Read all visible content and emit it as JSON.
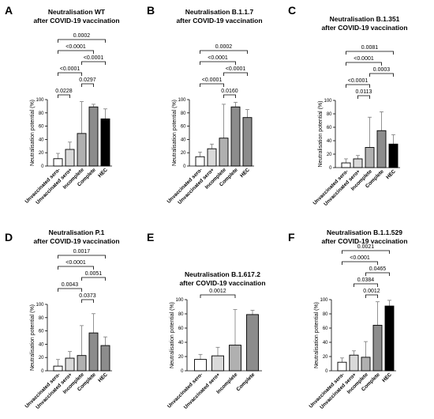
{
  "chart_data": [
    {
      "panel": "A",
      "type": "bar",
      "title": [
        "Neutralisation WT",
        "after COVID-19 vaccination"
      ],
      "ylabel": "Neutralisation potential (%)",
      "ylim": [
        0,
        100
      ],
      "yticks": [
        "0",
        "20",
        "40",
        "60",
        "80",
        "100"
      ],
      "categories": [
        "Unvaccinated sero-",
        "Unvaccinated sero+",
        "Incomplete",
        "Complete",
        "HEC"
      ],
      "values": [
        11,
        25,
        49,
        89,
        71
      ],
      "error_upper": [
        19,
        36,
        97,
        93,
        86
      ],
      "fills": [
        "#ffffff",
        "#d9d9d9",
        "#b0b0b0",
        "#8c8c8c",
        "#000000"
      ],
      "brackets": [
        {
          "from": 0,
          "to": 1,
          "label": "0.0228"
        },
        {
          "from": 2,
          "to": 3,
          "label": "0.0297"
        },
        {
          "from": 0,
          "to": 2,
          "label": "<0.0001"
        },
        {
          "from": 2,
          "to": 4,
          "label": "<0.0001"
        },
        {
          "from": 0,
          "to": 3,
          "label": "<0.0001"
        },
        {
          "from": 0,
          "to": 4,
          "label": "0.0002"
        }
      ]
    },
    {
      "panel": "B",
      "type": "bar",
      "title": [
        "Neutralisation B.1.1.7",
        "after COVID-19 vaccination"
      ],
      "ylabel": "Neutralisation potential (%)",
      "ylim": [
        0,
        100
      ],
      "yticks": [
        "0",
        "20",
        "40",
        "60",
        "80",
        "100"
      ],
      "categories": [
        "Unvaccinated sero-",
        "Unvaccinated sero+",
        "Incomplete",
        "Complete",
        "HEC"
      ],
      "values": [
        14,
        26,
        42,
        89,
        73
      ],
      "error_upper": [
        21,
        33,
        93,
        96,
        85
      ],
      "fills": [
        "#ffffff",
        "#d9d9d9",
        "#b0b0b0",
        "#8c8c8c",
        "#8c8c8c"
      ],
      "brackets": [
        {
          "from": 2,
          "to": 3,
          "label": "0.0160"
        },
        {
          "from": 0,
          "to": 2,
          "label": "<0.0001"
        },
        {
          "from": 2,
          "to": 4,
          "label": "<0.0001"
        },
        {
          "from": 0,
          "to": 3,
          "label": "<0.0001"
        },
        {
          "from": 0,
          "to": 4,
          "label": "0.0002"
        }
      ]
    },
    {
      "panel": "C",
      "type": "bar",
      "title": [
        "Neutralisation B.1.351",
        "after COVID-19 vaccination"
      ],
      "ylabel": "Neutralisation potential (%)",
      "ylim": [
        0,
        100
      ],
      "yticks": [
        "0",
        "20",
        "40",
        "60",
        "80",
        "100"
      ],
      "categories": [
        "Unvaccinated sero-",
        "Unvaccinated sero+",
        "Incomplete",
        "Complete",
        "HEC"
      ],
      "values": [
        7,
        13,
        30,
        55,
        35
      ],
      "error_upper": [
        13,
        18,
        75,
        83,
        49
      ],
      "fills": [
        "#ffffff",
        "#d9d9d9",
        "#b0b0b0",
        "#8c8c8c",
        "#000000"
      ],
      "brackets": [
        {
          "from": 1,
          "to": 2,
          "label": "0.0113"
        },
        {
          "from": 0,
          "to": 2,
          "label": "<0.0001"
        },
        {
          "from": 2,
          "to": 4,
          "label": "0.0003"
        },
        {
          "from": 0,
          "to": 3,
          "label": "<0.0001"
        },
        {
          "from": 0,
          "to": 4,
          "label": "0.0081"
        }
      ]
    },
    {
      "panel": "D",
      "type": "bar",
      "title": [
        "Neutralisation P.1",
        "after COVID-19 vaccination"
      ],
      "ylabel": "Neutralisation potential (%)",
      "ylim": [
        0,
        100
      ],
      "yticks": [
        "0",
        "20",
        "40",
        "60",
        "80",
        "100"
      ],
      "categories": [
        "Unvaccinated sero-",
        "Unvaccinated sero+",
        "Incomplete",
        "Complete",
        "HEC"
      ],
      "values": [
        7,
        19,
        23,
        57,
        38
      ],
      "error_upper": [
        17,
        29,
        68,
        86,
        51
      ],
      "fills": [
        "#ffffff",
        "#d9d9d9",
        "#b0b0b0",
        "#8c8c8c",
        "#8c8c8c"
      ],
      "brackets": [
        {
          "from": 2,
          "to": 3,
          "label": "0.0373"
        },
        {
          "from": 0,
          "to": 2,
          "label": "0.0043"
        },
        {
          "from": 2,
          "to": 4,
          "label": "0.0051"
        },
        {
          "from": 0,
          "to": 3,
          "label": "<0.0001"
        },
        {
          "from": 0,
          "to": 4,
          "label": "0.0017"
        }
      ]
    },
    {
      "panel": "E",
      "type": "bar",
      "title": [
        "Neutralisation B.1.617.2",
        "after COVID-19 vaccination"
      ],
      "ylabel": "Neutralisation potential (%)",
      "ylim": [
        0,
        100
      ],
      "yticks": [
        "0",
        "20",
        "40",
        "60",
        "80",
        "100"
      ],
      "categories": [
        "Unvaccinated sero-",
        "Unvaccinated sero+",
        "Incomplete",
        "Complete"
      ],
      "values": [
        16,
        21,
        36,
        79
      ],
      "error_upper": [
        23,
        33,
        86,
        85
      ],
      "fills": [
        "#ffffff",
        "#d9d9d9",
        "#b0b0b0",
        "#8c8c8c"
      ],
      "brackets": [
        {
          "from": 0,
          "to": 2,
          "label": "0.0012"
        }
      ]
    },
    {
      "panel": "F",
      "type": "bar",
      "title": [
        "Neutralisation B.1.1.529",
        "after COVID-19 vaccination"
      ],
      "ylabel": "Neutralisation potential (%)",
      "ylim": [
        0,
        100
      ],
      "yticks": [
        "0",
        "20",
        "40",
        "60",
        "80",
        "100"
      ],
      "categories": [
        "Unvaccinated sero-",
        "Unvaccinated sero+",
        "Incomplete",
        "Complete",
        "HEC"
      ],
      "values": [
        12,
        22,
        19,
        64,
        91
      ],
      "error_upper": [
        18,
        28,
        41,
        97,
        99
      ],
      "fills": [
        "#ffffff",
        "#d9d9d9",
        "#b0b0b0",
        "#8c8c8c",
        "#000000"
      ],
      "brackets": [
        {
          "from": 2,
          "to": 3,
          "label": "0.0012"
        },
        {
          "from": 1,
          "to": 3,
          "label": "0.0384"
        },
        {
          "from": 2,
          "to": 4,
          "label": "0.0465"
        },
        {
          "from": 0,
          "to": 3,
          "label": "<0.0001"
        },
        {
          "from": 0,
          "to": 4,
          "label": "0.0021"
        }
      ]
    }
  ]
}
